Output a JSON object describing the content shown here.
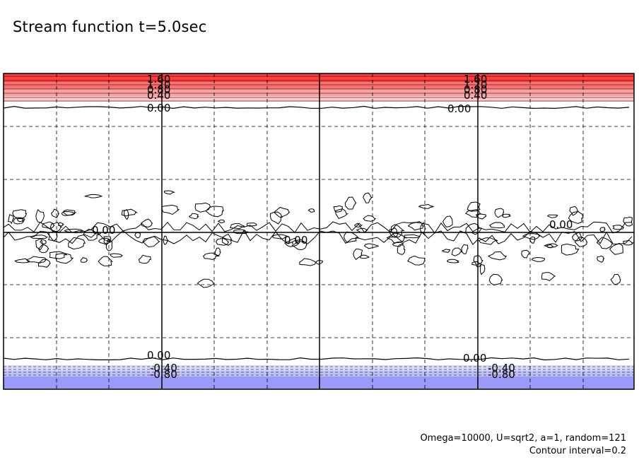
{
  "title": "Stream function t=5.0sec",
  "notes": {
    "params": "Omega=10000, U=sqrt2, a=1, random=121",
    "interval": "Contour interval=0.2"
  },
  "chart_data": {
    "type": "contour",
    "title": "Stream function t=5.0sec",
    "xlabel": "",
    "ylabel": "",
    "grid": true,
    "contour_interval": 0.2,
    "colors": {
      "positive": "#ff4040",
      "negative": "#9a9af8",
      "positive_light": "#ffc8c8",
      "negative_light": "#d8d8fc"
    },
    "top_labels": [
      "1.60",
      "1.20",
      "0.80",
      "0.40",
      "0.00"
    ],
    "top_right_labels": [
      "1.60",
      "1.20",
      "0.80",
      "0.40",
      "0.00"
    ],
    "middle_labels": [
      "0.00",
      "0.00",
      "0.00"
    ],
    "bottom_labels": [
      "0.00",
      "-0.40",
      "-0.80"
    ],
    "bottom_right_labels": [
      "0.00",
      "-0.40",
      "-0.80"
    ]
  }
}
